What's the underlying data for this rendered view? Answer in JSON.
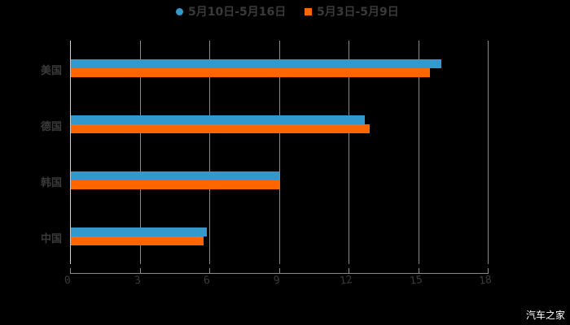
{
  "chart_data": {
    "type": "bar",
    "orientation": "horizontal",
    "title": "",
    "categories": [
      "美国",
      "德国",
      "韩国",
      "中国"
    ],
    "series": [
      {
        "name": "5月10日-5月16日",
        "color": "#3399cc",
        "values": [
          16.0,
          12.7,
          9.0,
          5.9
        ]
      },
      {
        "name": "5月3日-5月9日",
        "color": "#ff6600",
        "values": [
          15.5,
          12.9,
          9.0,
          5.75
        ]
      }
    ],
    "xlabel": "",
    "ylabel": "",
    "xlim": [
      0,
      18
    ],
    "xticks": [
      "0",
      "3",
      "6",
      "9",
      "12",
      "15",
      "18"
    ],
    "grid": true,
    "legend_position": "top"
  },
  "legend": {
    "items": [
      {
        "label": "5月10日-5月16日",
        "color": "#3399cc",
        "shape": "circle"
      },
      {
        "label": "5月3日-5月9日",
        "color": "#ff6600",
        "shape": "square"
      }
    ]
  },
  "watermark": "汽车之家"
}
